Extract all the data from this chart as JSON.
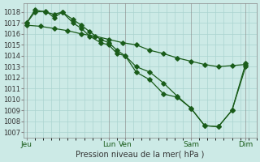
{
  "xlabel": "Pression niveau de la mer( hPa )",
  "bg_color": "#cceae6",
  "grid_color": "#aad4d0",
  "line_color": "#1a5c1a",
  "sep_color": "#888888",
  "ylim": [
    1006.5,
    1018.8
  ],
  "yticks": [
    1007,
    1008,
    1009,
    1010,
    1011,
    1012,
    1013,
    1014,
    1015,
    1016,
    1017,
    1018
  ],
  "xlim": [
    -0.1,
    8.35
  ],
  "day_positions": [
    0.0,
    3.0,
    3.6,
    6.0,
    8.0
  ],
  "day_labels": [
    "Jeu",
    "Lun",
    "Ven",
    "Sam",
    "Dim"
  ],
  "vline_positions": [
    0.0,
    3.0,
    3.6,
    6.0,
    8.0
  ],
  "series1_x": [
    0.0,
    0.3,
    0.7,
    1.0,
    1.3,
    1.7,
    2.0,
    2.3,
    2.7,
    3.0,
    3.3,
    3.6,
    4.0,
    4.5,
    5.0,
    5.5,
    6.0,
    6.5,
    7.0,
    7.5,
    8.0
  ],
  "series1_y": [
    1017.0,
    1018.2,
    1018.0,
    1017.8,
    1018.0,
    1017.3,
    1016.8,
    1016.2,
    1015.5,
    1015.2,
    1014.5,
    1014.0,
    1013.0,
    1012.5,
    1011.5,
    1010.3,
    1009.2,
    1007.6,
    1007.5,
    1009.0,
    1013.3
  ],
  "series2_x": [
    0.0,
    0.3,
    0.7,
    1.0,
    1.3,
    1.7,
    2.0,
    2.3,
    2.7,
    3.0,
    3.3,
    3.6,
    4.0,
    4.5,
    5.0,
    5.5,
    6.0,
    6.5,
    7.0,
    7.5,
    8.0
  ],
  "series2_y": [
    1017.0,
    1018.0,
    1018.1,
    1017.5,
    1018.0,
    1017.0,
    1016.5,
    1015.8,
    1015.2,
    1015.0,
    1014.2,
    1014.0,
    1012.5,
    1011.8,
    1010.5,
    1010.2,
    1009.2,
    1007.6,
    1007.5,
    1009.0,
    1013.0
  ],
  "series3_x": [
    0.0,
    0.5,
    1.0,
    1.5,
    2.0,
    2.5,
    3.0,
    3.5,
    4.0,
    4.5,
    5.0,
    5.5,
    6.0,
    6.5,
    7.0,
    7.5,
    8.0
  ],
  "series3_y": [
    1016.8,
    1016.7,
    1016.5,
    1016.3,
    1016.0,
    1015.8,
    1015.5,
    1015.2,
    1015.0,
    1014.5,
    1014.2,
    1013.8,
    1013.5,
    1013.2,
    1013.0,
    1013.1,
    1013.2
  ],
  "marker": "D",
  "markersize": 2.8,
  "linewidth": 0.9
}
